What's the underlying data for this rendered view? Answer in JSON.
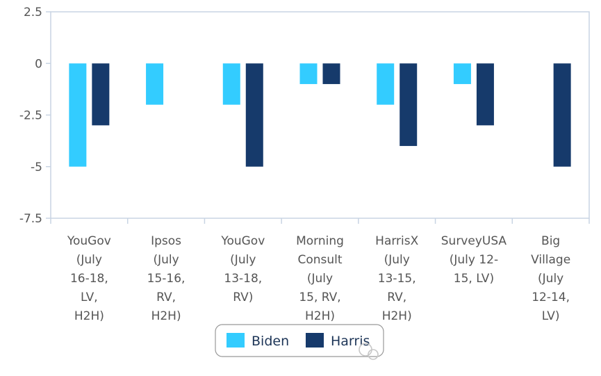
{
  "chart_data": {
    "type": "bar",
    "categories": [
      "YouGov (July 16-18, LV, H2H)",
      "Ipsos (July 15-16, RV, H2H)",
      "YouGov (July 13-18, RV)",
      "Morning Consult (July 15, RV, H2H)",
      "HarrisX (July 13-15, RV, H2H)",
      "SurveyUSA (July 12-15, LV)",
      "Big Village (July 12-14, LV)"
    ],
    "category_lines": [
      [
        "YouGov",
        "(July",
        "16-18,",
        "LV,",
        "H2H)"
      ],
      [
        "Ipsos",
        "(July",
        "15-16,",
        "RV,",
        "H2H)"
      ],
      [
        "YouGov",
        "(July",
        "13-18,",
        "RV)"
      ],
      [
        "Morning",
        "Consult",
        "(July",
        "15, RV,",
        "H2H)"
      ],
      [
        "HarrisX",
        "(July",
        "13-15,",
        "RV,",
        "H2H)"
      ],
      [
        "SurveyUSA",
        "(July 12-",
        "15, LV)"
      ],
      [
        "Big",
        "Village",
        "(July",
        "12-14,",
        "LV)"
      ]
    ],
    "series": [
      {
        "name": "Biden",
        "color": "#33ccff",
        "values": [
          -5,
          -2,
          -2,
          -1,
          -2,
          -1,
          0
        ]
      },
      {
        "name": "Harris",
        "color": "#163a6b",
        "values": [
          -3,
          0,
          -5,
          -1,
          -4,
          -3,
          -5
        ]
      }
    ],
    "ylim": [
      -7.5,
      2.5
    ],
    "yticks": [
      2.5,
      0,
      -2.5,
      -5,
      -7.5
    ],
    "ytick_labels": [
      "2.5",
      "0",
      "-2.5",
      "-5",
      "-7.5"
    ],
    "title": "",
    "xlabel": "",
    "ylabel": "",
    "grid": false,
    "legend_position": "bottom-center"
  }
}
